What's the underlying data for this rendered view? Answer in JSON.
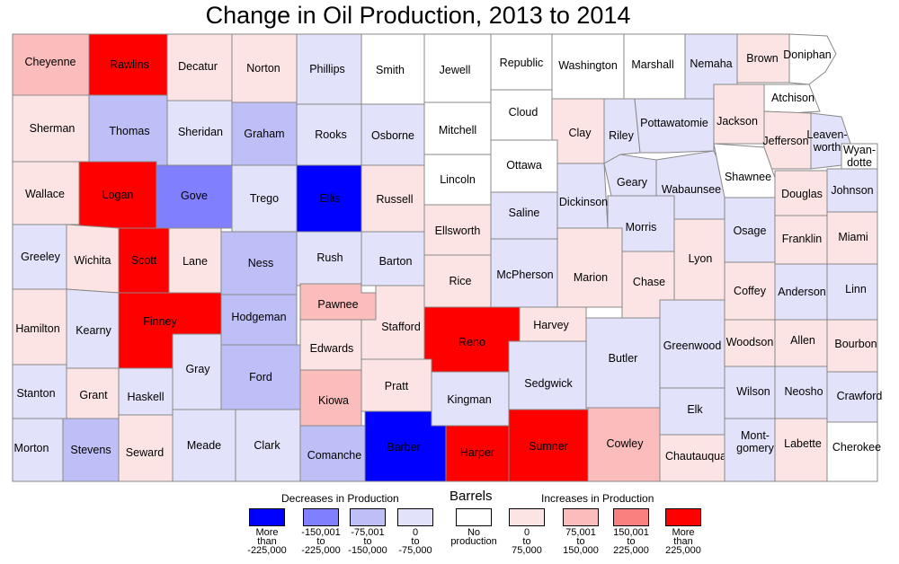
{
  "title": "Change in Oil Production, 2013 to 2014",
  "colors": {
    "dec4": "#0000ff",
    "dec3": "#8080ff",
    "dec2": "#bfbff7",
    "dec1": "#e2e2fa",
    "none": "#ffffff",
    "inc1": "#fde4e4",
    "inc2": "#fbbcbc",
    "inc3": "#fa8080",
    "inc4": "#ff0000"
  },
  "legend": {
    "title": "Barrels",
    "decreases_label": "Decreases in Production",
    "increases_label": "Increases in Production",
    "classes": [
      {
        "key": "dec4",
        "label": "More than -225,000"
      },
      {
        "key": "dec3",
        "label": "-150,001 to -225,000"
      },
      {
        "key": "dec2",
        "label": "-75,001 to -150,000"
      },
      {
        "key": "dec1",
        "label": "0 to -75,000"
      },
      {
        "key": "none",
        "label": "No production"
      },
      {
        "key": "inc1",
        "label": "0 to 75,000"
      },
      {
        "key": "inc2",
        "label": "75,001 to 150,000"
      },
      {
        "key": "inc3",
        "label": "150,001 to 225,000"
      },
      {
        "key": "inc4",
        "label": "More than 225,000"
      }
    ]
  },
  "counties": [
    {
      "name": "Cheyenne",
      "cls": "inc2"
    },
    {
      "name": "Rawlins",
      "cls": "inc4"
    },
    {
      "name": "Decatur",
      "cls": "inc1"
    },
    {
      "name": "Norton",
      "cls": "inc1"
    },
    {
      "name": "Phillips",
      "cls": "dec1"
    },
    {
      "name": "Smith",
      "cls": "none"
    },
    {
      "name": "Jewell",
      "cls": "none"
    },
    {
      "name": "Republic",
      "cls": "none"
    },
    {
      "name": "Washington",
      "cls": "none"
    },
    {
      "name": "Marshall",
      "cls": "none"
    },
    {
      "name": "Nemaha",
      "cls": "dec1"
    },
    {
      "name": "Brown",
      "cls": "inc1"
    },
    {
      "name": "Doniphan",
      "cls": "none"
    },
    {
      "name": "Sherman",
      "cls": "inc1"
    },
    {
      "name": "Thomas",
      "cls": "dec2"
    },
    {
      "name": "Sheridan",
      "cls": "dec1"
    },
    {
      "name": "Graham",
      "cls": "dec2"
    },
    {
      "name": "Rooks",
      "cls": "dec1"
    },
    {
      "name": "Osborne",
      "cls": "dec1"
    },
    {
      "name": "Mitchell",
      "cls": "none"
    },
    {
      "name": "Cloud",
      "cls": "none"
    },
    {
      "name": "Clay",
      "cls": "inc1"
    },
    {
      "name": "Riley",
      "cls": "dec1"
    },
    {
      "name": "Pottawatomie",
      "cls": "dec1"
    },
    {
      "name": "Jackson",
      "cls": "inc1"
    },
    {
      "name": "Atchison",
      "cls": "none"
    },
    {
      "name": "Jefferson",
      "cls": "inc1"
    },
    {
      "name": "Leaven-worth",
      "cls": "dec1"
    },
    {
      "name": "Wyan-dotte",
      "cls": "none"
    },
    {
      "name": "Wallace",
      "cls": "inc1"
    },
    {
      "name": "Logan",
      "cls": "inc4"
    },
    {
      "name": "Gove",
      "cls": "dec3"
    },
    {
      "name": "Trego",
      "cls": "dec1"
    },
    {
      "name": "Ellis",
      "cls": "dec4"
    },
    {
      "name": "Russell",
      "cls": "inc1"
    },
    {
      "name": "Lincoln",
      "cls": "none"
    },
    {
      "name": "Ottawa",
      "cls": "none"
    },
    {
      "name": "Dickinson",
      "cls": "dec1"
    },
    {
      "name": "Geary",
      "cls": "dec1"
    },
    {
      "name": "Wabaunsee",
      "cls": "dec1"
    },
    {
      "name": "Shawnee",
      "cls": "none"
    },
    {
      "name": "Douglas",
      "cls": "inc1"
    },
    {
      "name": "Johnson",
      "cls": "dec1"
    },
    {
      "name": "Greeley",
      "cls": "dec1"
    },
    {
      "name": "Wichita",
      "cls": "inc1"
    },
    {
      "name": "Scott",
      "cls": "inc4"
    },
    {
      "name": "Lane",
      "cls": "inc1"
    },
    {
      "name": "Ness",
      "cls": "dec2"
    },
    {
      "name": "Rush",
      "cls": "dec1"
    },
    {
      "name": "Barton",
      "cls": "dec1"
    },
    {
      "name": "Ellsworth",
      "cls": "inc1"
    },
    {
      "name": "Saline",
      "cls": "dec1"
    },
    {
      "name": "Morris",
      "cls": "dec1"
    },
    {
      "name": "Osage",
      "cls": "dec1"
    },
    {
      "name": "Franklin",
      "cls": "inc1"
    },
    {
      "name": "Miami",
      "cls": "inc1"
    },
    {
      "name": "Rice",
      "cls": "inc1"
    },
    {
      "name": "McPherson",
      "cls": "dec1"
    },
    {
      "name": "Marion",
      "cls": "inc1"
    },
    {
      "name": "Chase",
      "cls": "inc1"
    },
    {
      "name": "Lyon",
      "cls": "inc1"
    },
    {
      "name": "Coffey",
      "cls": "inc1"
    },
    {
      "name": "Anderson",
      "cls": "dec1"
    },
    {
      "name": "Linn",
      "cls": "dec1"
    },
    {
      "name": "Hamilton",
      "cls": "inc1"
    },
    {
      "name": "Kearny",
      "cls": "dec1"
    },
    {
      "name": "Finney",
      "cls": "inc4"
    },
    {
      "name": "Hodgeman",
      "cls": "dec2"
    },
    {
      "name": "Pawnee",
      "cls": "inc2"
    },
    {
      "name": "Edwards",
      "cls": "inc1"
    },
    {
      "name": "Stafford",
      "cls": "inc1"
    },
    {
      "name": "Reno",
      "cls": "inc4"
    },
    {
      "name": "Harvey",
      "cls": "inc1"
    },
    {
      "name": "Butler",
      "cls": "dec1"
    },
    {
      "name": "Greenwood",
      "cls": "dec1"
    },
    {
      "name": "Woodson",
      "cls": "inc1"
    },
    {
      "name": "Allen",
      "cls": "inc1"
    },
    {
      "name": "Bourbon",
      "cls": "inc1"
    },
    {
      "name": "Gray",
      "cls": "dec1"
    },
    {
      "name": "Ford",
      "cls": "dec2"
    },
    {
      "name": "Stanton",
      "cls": "dec1"
    },
    {
      "name": "Grant",
      "cls": "inc1"
    },
    {
      "name": "Haskell",
      "cls": "dec1"
    },
    {
      "name": "Kiowa",
      "cls": "inc2"
    },
    {
      "name": "Pratt",
      "cls": "inc1"
    },
    {
      "name": "Kingman",
      "cls": "dec1"
    },
    {
      "name": "Sedgwick",
      "cls": "dec1"
    },
    {
      "name": "Wilson",
      "cls": "dec1"
    },
    {
      "name": "Neosho",
      "cls": "dec1"
    },
    {
      "name": "Crawford",
      "cls": "dec1"
    },
    {
      "name": "Elk",
      "cls": "dec1"
    },
    {
      "name": "Morton",
      "cls": "dec1"
    },
    {
      "name": "Stevens",
      "cls": "dec2"
    },
    {
      "name": "Seward",
      "cls": "inc1"
    },
    {
      "name": "Meade",
      "cls": "dec1"
    },
    {
      "name": "Clark",
      "cls": "dec1"
    },
    {
      "name": "Comanche",
      "cls": "dec2"
    },
    {
      "name": "Barber",
      "cls": "dec4"
    },
    {
      "name": "Harper",
      "cls": "inc4"
    },
    {
      "name": "Sumner",
      "cls": "inc4"
    },
    {
      "name": "Cowley",
      "cls": "inc2"
    },
    {
      "name": "Chautauqua",
      "cls": "inc1"
    },
    {
      "name": "Mont-gomery",
      "cls": "dec1"
    },
    {
      "name": "Labette",
      "cls": "inc1"
    },
    {
      "name": "Cherokee",
      "cls": "none"
    }
  ]
}
